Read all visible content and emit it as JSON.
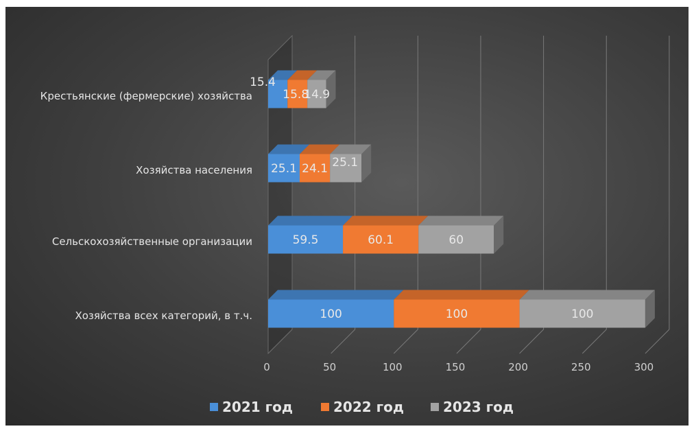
{
  "chart_data": {
    "type": "bar",
    "orientation": "horizontal",
    "stacked": true,
    "style": "3d",
    "categories": [
      "Хозяйства всех категорий, в т.ч.",
      "Сельскохозяйственные организации",
      "Хозяйства населения",
      "Крестьянские (фермерские) хозяйства"
    ],
    "series": [
      {
        "name": "2021 год",
        "color": "#4a8fd8",
        "values": [
          100,
          59.5,
          25.1,
          15.4
        ],
        "labels": [
          "100",
          "59.5",
          "25.1",
          "15.4"
        ]
      },
      {
        "name": "2022 год",
        "color": "#f07a32",
        "values": [
          100,
          60.1,
          24.1,
          15.8
        ],
        "labels": [
          "100",
          "60.1",
          "24.1",
          "15.8"
        ]
      },
      {
        "name": "2023 год",
        "color": "#a2a2a2",
        "values": [
          100,
          60,
          25.1,
          14.9
        ],
        "labels": [
          "100",
          "60",
          "25.1",
          "14.9"
        ]
      }
    ],
    "xlim": [
      0,
      300
    ],
    "xticks": [
      "0",
      "50",
      "100",
      "150",
      "200",
      "250",
      "300"
    ],
    "grid": true,
    "legend": "bottom",
    "title": "",
    "xlabel": "",
    "ylabel": ""
  }
}
